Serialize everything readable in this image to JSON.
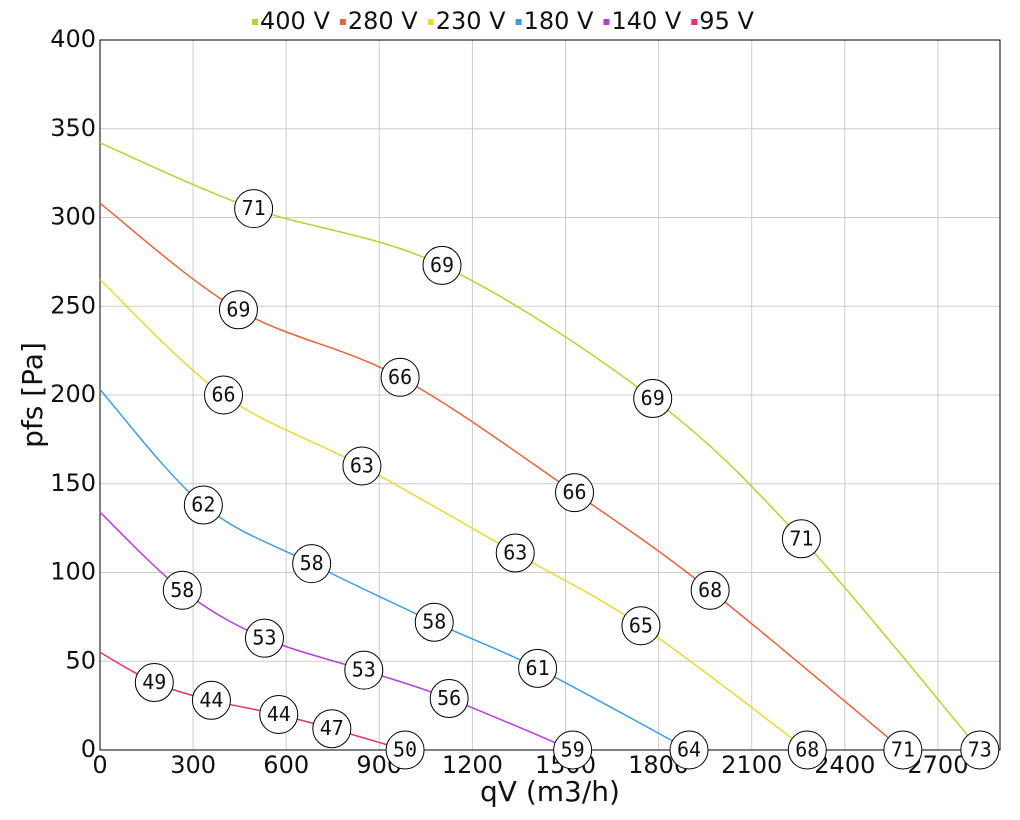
{
  "chart_data": {
    "type": "line",
    "x_label": "qV (m3/h)",
    "y_label": "pfs [Pa]",
    "xlim": [
      0,
      2900
    ],
    "ylim": [
      0,
      400
    ],
    "xticks": [
      0,
      300,
      600,
      900,
      1200,
      1500,
      1800,
      2100,
      2400,
      2700
    ],
    "yticks": [
      0,
      50,
      100,
      150,
      200,
      250,
      300,
      350,
      400
    ],
    "grid": true,
    "legend": "top",
    "series": [
      {
        "name": "400 V",
        "color": "#b5d334",
        "x": [
          0,
          495,
          1102,
          1781,
          2260,
          2835
        ],
        "values": [
          342,
          305,
          273,
          198,
          119,
          0
        ],
        "markers": [
          {
            "x": 495,
            "y": 305,
            "value": 71
          },
          {
            "x": 1102,
            "y": 273,
            "value": 69
          },
          {
            "x": 1781,
            "y": 198,
            "value": 69
          },
          {
            "x": 2260,
            "y": 119,
            "value": 71
          },
          {
            "x": 2835,
            "y": 0,
            "value": 73
          }
        ]
      },
      {
        "name": "280 V",
        "color": "#e8643c",
        "x": [
          0,
          446,
          967,
          1529,
          1966,
          2587
        ],
        "values": [
          308,
          248,
          210,
          145,
          90,
          0
        ],
        "markers": [
          {
            "x": 446,
            "y": 248,
            "value": 69
          },
          {
            "x": 967,
            "y": 210,
            "value": 66
          },
          {
            "x": 1529,
            "y": 145,
            "value": 66
          },
          {
            "x": 1966,
            "y": 90,
            "value": 68
          },
          {
            "x": 2587,
            "y": 0,
            "value": 71
          }
        ]
      },
      {
        "name": "230 V",
        "color": "#e8d83a",
        "x": [
          0,
          398,
          844,
          1338,
          1743,
          2279
        ],
        "values": [
          265,
          200,
          160,
          111,
          70,
          0
        ],
        "markers": [
          {
            "x": 398,
            "y": 200,
            "value": 66
          },
          {
            "x": 844,
            "y": 160,
            "value": 63
          },
          {
            "x": 1338,
            "y": 111,
            "value": 63
          },
          {
            "x": 1743,
            "y": 70,
            "value": 65
          },
          {
            "x": 2279,
            "y": 0,
            "value": 68
          }
        ]
      },
      {
        "name": "180 V",
        "color": "#3a9ee0",
        "x": [
          0,
          333,
          682,
          1077,
          1410,
          1898
        ],
        "values": [
          203,
          138,
          105,
          72,
          46,
          0
        ],
        "markers": [
          {
            "x": 333,
            "y": 138,
            "value": 62
          },
          {
            "x": 682,
            "y": 105,
            "value": 58
          },
          {
            "x": 1077,
            "y": 72,
            "value": 58
          },
          {
            "x": 1410,
            "y": 46,
            "value": 61
          },
          {
            "x": 1898,
            "y": 0,
            "value": 64
          }
        ]
      },
      {
        "name": "140 V",
        "color": "#b53de0",
        "x": [
          0,
          265,
          530,
          850,
          1125,
          1523
        ],
        "values": [
          134,
          90,
          63,
          45,
          29,
          0
        ],
        "markers": [
          {
            "x": 265,
            "y": 90,
            "value": 58
          },
          {
            "x": 530,
            "y": 63,
            "value": 53
          },
          {
            "x": 850,
            "y": 45,
            "value": 53
          },
          {
            "x": 1125,
            "y": 29,
            "value": 56
          },
          {
            "x": 1523,
            "y": 0,
            "value": 59
          }
        ]
      },
      {
        "name": "95 V",
        "color": "#e8306a",
        "x": [
          0,
          175,
          359,
          576,
          747,
          983
        ],
        "values": [
          55,
          38,
          28,
          20,
          12,
          0
        ],
        "markers": [
          {
            "x": 175,
            "y": 38,
            "value": 49
          },
          {
            "x": 359,
            "y": 28,
            "value": 44
          },
          {
            "x": 576,
            "y": 20,
            "value": 44
          },
          {
            "x": 747,
            "y": 12,
            "value": 47
          },
          {
            "x": 983,
            "y": 0,
            "value": 50
          }
        ]
      }
    ]
  }
}
